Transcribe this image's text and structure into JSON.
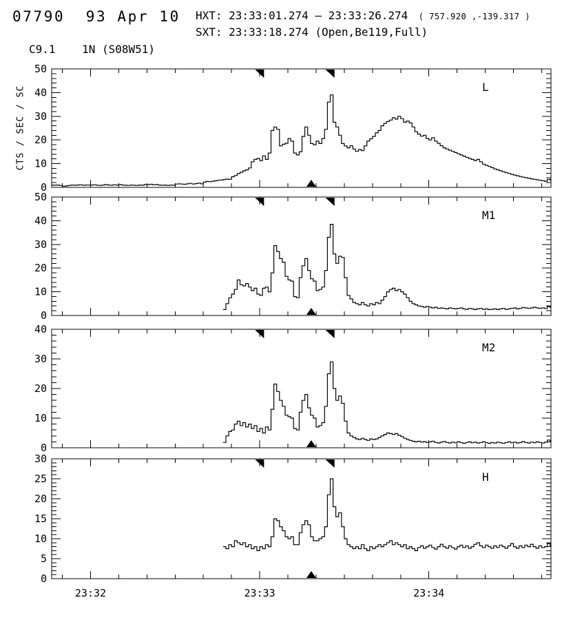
{
  "header": {
    "event_title": "07790  93 Apr 10",
    "hxt_line": "HXT: 23:33:01.274 — 23:33:26.274",
    "hxt_coords": "  ( 757.920 ,-139.317 )",
    "sxt_line": "SXT: 23:33:18.274 (Open,Be119,Full)",
    "flare_class_line": "C9.1    1N (S08W51)"
  },
  "y_axis_label": "CTS / SEC / SC",
  "chart_data": {
    "type": "line",
    "subtype": "step-histogram-lightcurves",
    "title": "07790  93 Apr 10",
    "ylabel": "CTS / SEC / SC",
    "line_color": "#000000",
    "background": "#ffffff",
    "x_axis": {
      "units": "seconds relative to 23:32:00",
      "range": [
        -13.8,
        163.3
      ],
      "minor_step": 10,
      "ticks": [
        {
          "t": 0,
          "label": "23:32"
        },
        {
          "t": 60,
          "label": "23:33"
        },
        {
          "t": 120,
          "label": "23:34"
        }
      ]
    },
    "markers": {
      "hxt_interval_seconds": [
        61.274,
        86.274
      ],
      "sxt_exposure_second": 78.274
    },
    "panels": [
      {
        "id": "L",
        "label": "L",
        "ylim": [
          0,
          50
        ],
        "ymajor": 10,
        "yminor": 2,
        "bin_seconds": 1,
        "t0": -14,
        "values": [
          1,
          0.9,
          1,
          0.8,
          0.5,
          0.6,
          0.8,
          1,
          0.9,
          1,
          1.1,
          0.9,
          1,
          1,
          1,
          1.1,
          0.9,
          0.8,
          1,
          1.2,
          1,
          0.9,
          1.1,
          1,
          1.2,
          1,
          0.9,
          0.8,
          1,
          0.9,
          0.8,
          1,
          0.9,
          1.2,
          1.2,
          1.3,
          1.1,
          1.2,
          1,
          0.9,
          1,
          0.8,
          1,
          0.9,
          1.4,
          1.5,
          1.4,
          1.3,
          1.5,
          1.7,
          1.4,
          1.6,
          1.8,
          1.5,
          2.2,
          2.5,
          2.4,
          2.6,
          2.8,
          3,
          3.1,
          3.3,
          3.5,
          3.4,
          4.5,
          5,
          5.8,
          6.4,
          7,
          7.4,
          8.2,
          10.8,
          11.8,
          12.2,
          11.3,
          13.3,
          11.8,
          14.5,
          24,
          25.5,
          24.5,
          17.5,
          18.2,
          18.6,
          20.6,
          19.5,
          14.5,
          13.7,
          15,
          21.5,
          25.5,
          22,
          18.5,
          18,
          19.5,
          18.5,
          20.6,
          24.5,
          36,
          39,
          27.5,
          25.5,
          22,
          18.5,
          17.5,
          16.7,
          17.6,
          16.2,
          15.2,
          16,
          15.5,
          17.5,
          19.5,
          20.5,
          21.5,
          23,
          24,
          26,
          27,
          27.8,
          28.4,
          29.4,
          28.8,
          30,
          29,
          27.5,
          28,
          27.2,
          25.5,
          23.5,
          22.5,
          21.6,
          22,
          20.6,
          20,
          21,
          19.5,
          18.6,
          17.6,
          16.7,
          16.2,
          15.7,
          15.2,
          14.7,
          14.2,
          13.7,
          13.2,
          12.7,
          12.2,
          11.8,
          11.3,
          11.8,
          10.8,
          9.8,
          9.3,
          8.8,
          8.3,
          7.8,
          7.4,
          7,
          6.6,
          6.2,
          5.9,
          5.5,
          5.2,
          4.9,
          4.6,
          4.3,
          4.1,
          3.9,
          3.6,
          3.4,
          3.2,
          3,
          2.8,
          2.6,
          3.4,
          3
        ]
      },
      {
        "id": "M1",
        "label": "M1",
        "ylim": [
          0,
          50
        ],
        "ymajor": 10,
        "yminor": 2,
        "bin_seconds": 1,
        "t0": 47,
        "values": [
          2.5,
          5,
          7.5,
          9,
          11,
          15,
          13,
          12.5,
          13.5,
          12,
          10.5,
          11.5,
          9,
          8.5,
          11.5,
          12,
          10,
          18,
          29.5,
          27,
          24,
          22.5,
          16.5,
          15,
          14.5,
          8,
          7.5,
          16,
          21,
          24,
          19,
          15.5,
          14.5,
          10.5,
          11,
          12,
          19,
          33,
          38.5,
          26,
          22,
          25,
          24.5,
          16,
          8.5,
          7,
          5.5,
          5,
          4.5,
          5.5,
          4.5,
          4,
          5,
          4.5,
          5.5,
          5,
          6.5,
          8,
          10,
          11,
          11.5,
          10.5,
          11,
          10,
          9,
          7.5,
          6,
          5,
          4.5,
          4,
          3.8,
          3.5,
          3.8,
          3.5,
          3.2,
          3.5,
          3,
          3.2,
          3,
          2.8,
          3.2,
          3,
          2.8,
          3,
          3.2,
          2.8,
          2.6,
          3,
          2.8,
          2.5,
          2.8,
          3,
          2.6,
          2.8,
          2.5,
          2.6,
          2.8,
          2.5,
          2.8,
          3,
          2.6,
          2.8,
          3,
          3.2,
          2.8,
          3,
          3.4,
          3.2,
          3,
          3.2,
          3.5,
          3.2,
          3,
          3.2,
          3,
          3.8,
          3.4
        ]
      },
      {
        "id": "M2",
        "label": "M2",
        "ylim": [
          0,
          40
        ],
        "ymajor": 10,
        "yminor": 2,
        "bin_seconds": 1,
        "t0": 47,
        "values": [
          1.8,
          4,
          5.5,
          6,
          8,
          9,
          7.5,
          8.5,
          7,
          8,
          6.5,
          7.5,
          5.5,
          6.5,
          5,
          7,
          6,
          13,
          21.5,
          19,
          16,
          14,
          11,
          10.5,
          10,
          6.5,
          6,
          12,
          16,
          18,
          13.5,
          11,
          10,
          7,
          7.5,
          8.5,
          14,
          25,
          29,
          20,
          16,
          17.5,
          15,
          9,
          5,
          4,
          3.5,
          3,
          2.8,
          3.2,
          2.8,
          2.5,
          3,
          2.8,
          3,
          3.5,
          4,
          4.5,
          5,
          4.8,
          4.5,
          4.8,
          4.2,
          3.8,
          3.2,
          2.8,
          2.5,
          2.2,
          2,
          2.2,
          1.9,
          2.1,
          1.8,
          2,
          2.2,
          1.8,
          1.6,
          1.9,
          2.1,
          1.8,
          1.6,
          1.9,
          1.7,
          2,
          1.8,
          1.5,
          1.8,
          2,
          1.7,
          1.9,
          1.6,
          1.8,
          2,
          1.7,
          1.5,
          1.8,
          1.6,
          1.9,
          1.7,
          1.5,
          1.8,
          2,
          1.7,
          1.9,
          1.6,
          1.8,
          2.1,
          1.8,
          1.6,
          1.9,
          1.7,
          2,
          1.8,
          1.6,
          1.9,
          2.6,
          2.2
        ]
      },
      {
        "id": "H",
        "label": "H",
        "ylim": [
          0,
          30
        ],
        "ymajor": 5,
        "yminor": 1,
        "bin_seconds": 1,
        "t0": 47,
        "values": [
          8,
          7.5,
          8.5,
          8,
          9.5,
          9,
          8.5,
          9,
          8,
          8.5,
          7.5,
          8,
          7,
          8,
          7.5,
          8.5,
          8,
          10.5,
          15,
          14.5,
          13,
          12,
          10.5,
          10,
          10.5,
          8.5,
          8.5,
          11.5,
          13.5,
          14.5,
          13.5,
          10.5,
          9.5,
          9.5,
          10,
          10.5,
          13,
          21,
          25,
          18,
          15.5,
          16.5,
          13,
          10,
          8.5,
          8,
          7.5,
          8,
          7.5,
          8.5,
          7.5,
          7,
          8,
          7.5,
          8,
          8.5,
          8,
          8.5,
          9,
          9.5,
          8.5,
          9,
          8.5,
          8,
          8.5,
          7.5,
          8,
          7.5,
          7,
          7.8,
          8.2,
          7.6,
          8,
          8.4,
          7.8,
          7.4,
          8,
          8.6,
          8,
          7.6,
          8.2,
          7.8,
          7.4,
          8,
          8.4,
          7.8,
          8.2,
          7.6,
          8,
          8.6,
          9,
          8.2,
          7.8,
          8.4,
          8,
          7.6,
          8.2,
          7.8,
          8.4,
          8,
          7.6,
          8.2,
          8.8,
          8,
          7.6,
          8.2,
          7.8,
          8.4,
          8,
          8.6,
          8,
          7.6,
          8.2,
          7.8,
          8,
          8.8,
          8.2
        ]
      }
    ]
  }
}
